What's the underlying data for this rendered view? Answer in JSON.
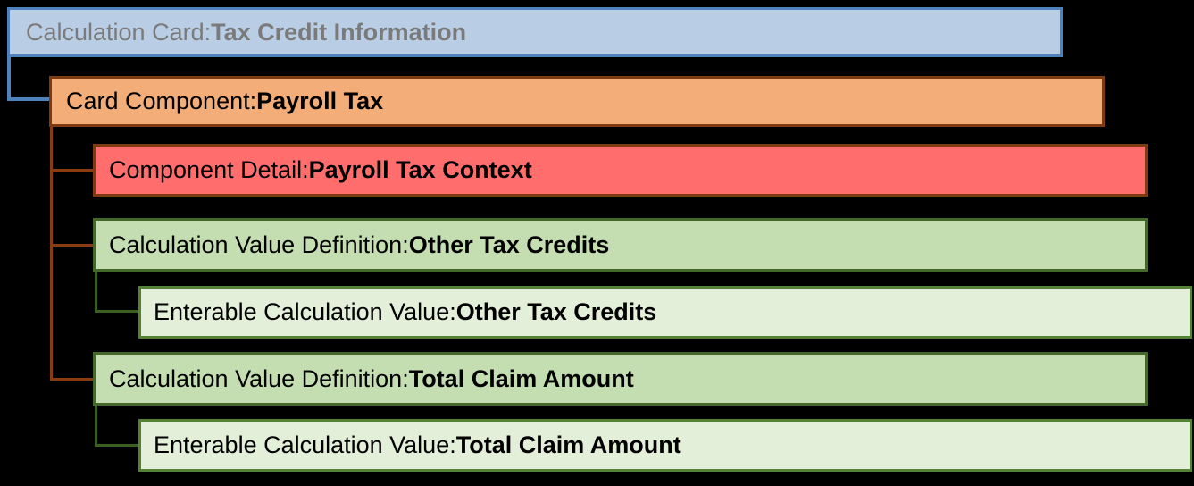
{
  "diagram": {
    "background_color": "#000000",
    "nodes": {
      "calculation_card": {
        "prefix": "Calculation Card: ",
        "value": "Tax Credit Information",
        "fill_color": "#b9cde5",
        "border_color": "#4f81bd",
        "text_color": "#7a7a7a",
        "level": 0
      },
      "card_component": {
        "prefix": "Card Component: ",
        "value": "Payroll Tax",
        "fill_color": "#f2ad79",
        "border_color": "#7e3a10",
        "text_color": "#000000",
        "level": 1
      },
      "component_detail": {
        "prefix": "Component Detail: ",
        "value": "Payroll Tax Context",
        "fill_color": "#ff6d6d",
        "border_color": "#7e3a10",
        "text_color": "#000000",
        "level": 2
      },
      "calc_value_def_other": {
        "prefix": "Calculation Value Definition: ",
        "value": "Other Tax Credits",
        "fill_color": "#c5deb1",
        "border_color": "#44682a",
        "text_color": "#000000",
        "level": 2
      },
      "enterable_value_other": {
        "prefix": "Enterable Calculation Value: ",
        "value": "Other Tax Credits",
        "fill_color": "#e3efd9",
        "border_color": "#538135",
        "text_color": "#000000",
        "level": 3
      },
      "calc_value_def_total": {
        "prefix": "Calculation Value Definition: ",
        "value": "Total Claim Amount",
        "fill_color": "#c5deb1",
        "border_color": "#44682a",
        "text_color": "#000000",
        "level": 2
      },
      "enterable_value_total": {
        "prefix": "Enterable Calculation Value: ",
        "value": "Total Claim Amount",
        "fill_color": "#e3efd9",
        "border_color": "#538135",
        "text_color": "#000000",
        "level": 3
      }
    },
    "connector_colors": {
      "card_to_component": "#4f81bd",
      "component_to_children": "#8a3c10",
      "definition_to_enterable": "#3a5f23"
    }
  }
}
